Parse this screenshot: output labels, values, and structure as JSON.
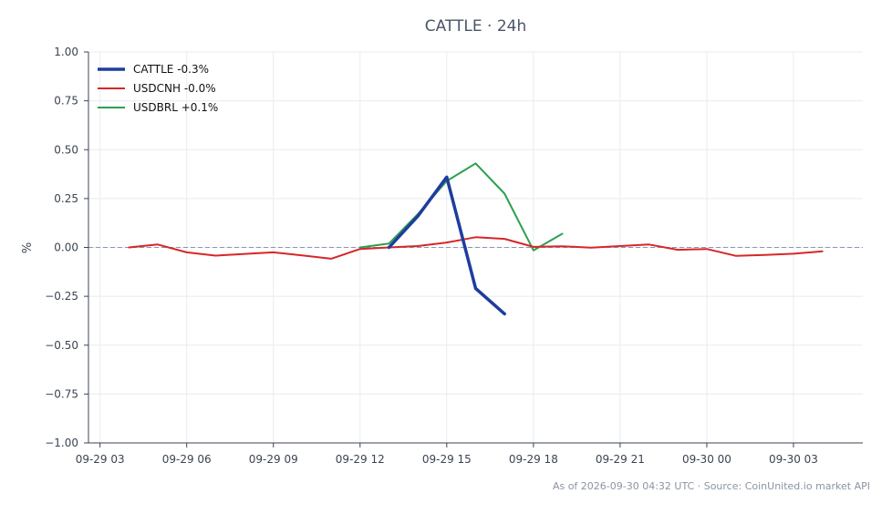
{
  "chart_data": {
    "type": "line",
    "title": "CATTLE · 24h",
    "xlabel": "",
    "ylabel": "%",
    "ylim": [
      -1.0,
      1.0
    ],
    "yticks": [
      "1.00",
      "0.75",
      "0.50",
      "0.25",
      "0.00",
      "−0.25",
      "−0.50",
      "−0.75",
      "−1.00"
    ],
    "ytick_values": [
      1.0,
      0.75,
      0.5,
      0.25,
      0.0,
      -0.25,
      -0.5,
      -0.75,
      -1.0
    ],
    "xlim": [
      "09-29 02:36",
      "09-30 05:24"
    ],
    "xticks": [
      "09-29 03",
      "09-29 06",
      "09-29 09",
      "09-29 12",
      "09-29 15",
      "09-29 18",
      "09-29 21",
      "09-30 00",
      "09-30 03"
    ],
    "xtick_times": [
      "09-29 03:00",
      "09-29 06:00",
      "09-29 09:00",
      "09-29 12:00",
      "09-29 15:00",
      "09-29 18:00",
      "09-29 21:00",
      "09-30 00:00",
      "09-30 03:00"
    ],
    "grid": true,
    "zero_line": true,
    "legend_position": "top-left",
    "series": [
      {
        "name": "CATTLE -0.3%",
        "color": "#1f3d9e",
        "x": [
          "09-29 13:00",
          "09-29 14:00",
          "09-29 15:00",
          "09-29 16:00",
          "09-29 17:00"
        ],
        "y": [
          0.0,
          0.16,
          0.36,
          -0.21,
          -0.34
        ]
      },
      {
        "name": "USDCNH -0.0%",
        "color": "#d62728",
        "x": [
          "09-29 04:00",
          "09-29 05:00",
          "09-29 06:00",
          "09-29 07:00",
          "09-29 08:00",
          "09-29 09:00",
          "09-29 10:00",
          "09-29 11:00",
          "09-29 12:00",
          "09-29 13:00",
          "09-29 14:00",
          "09-29 15:00",
          "09-29 16:00",
          "09-29 17:00",
          "09-29 18:00",
          "09-29 19:00",
          "09-29 20:00",
          "09-29 21:00",
          "09-29 22:00",
          "09-29 23:00",
          "09-30 00:00",
          "09-30 01:00",
          "09-30 02:00",
          "09-30 03:00",
          "09-30 04:00"
        ],
        "y": [
          0.0,
          0.015,
          -0.025,
          -0.042,
          -0.033,
          -0.025,
          -0.041,
          -0.058,
          -0.008,
          0.0,
          0.007,
          0.025,
          0.052,
          0.044,
          0.003,
          0.006,
          -0.001,
          0.007,
          0.015,
          -0.012,
          -0.008,
          -0.043,
          -0.038,
          -0.032,
          -0.02
        ]
      },
      {
        "name": "USDBRL +0.1%",
        "color": "#2ca050",
        "x": [
          "09-29 12:00",
          "09-29 13:00",
          "09-29 14:00",
          "09-29 15:00",
          "09-29 16:00",
          "09-29 17:00",
          "09-29 18:00",
          "09-29 19:00"
        ],
        "y": [
          0.0,
          0.02,
          0.17,
          0.34,
          0.43,
          0.275,
          -0.015,
          0.07
        ]
      }
    ]
  },
  "footer": "As of 2026-09-30 04:32 UTC · Source: CoinUnited.io market API"
}
